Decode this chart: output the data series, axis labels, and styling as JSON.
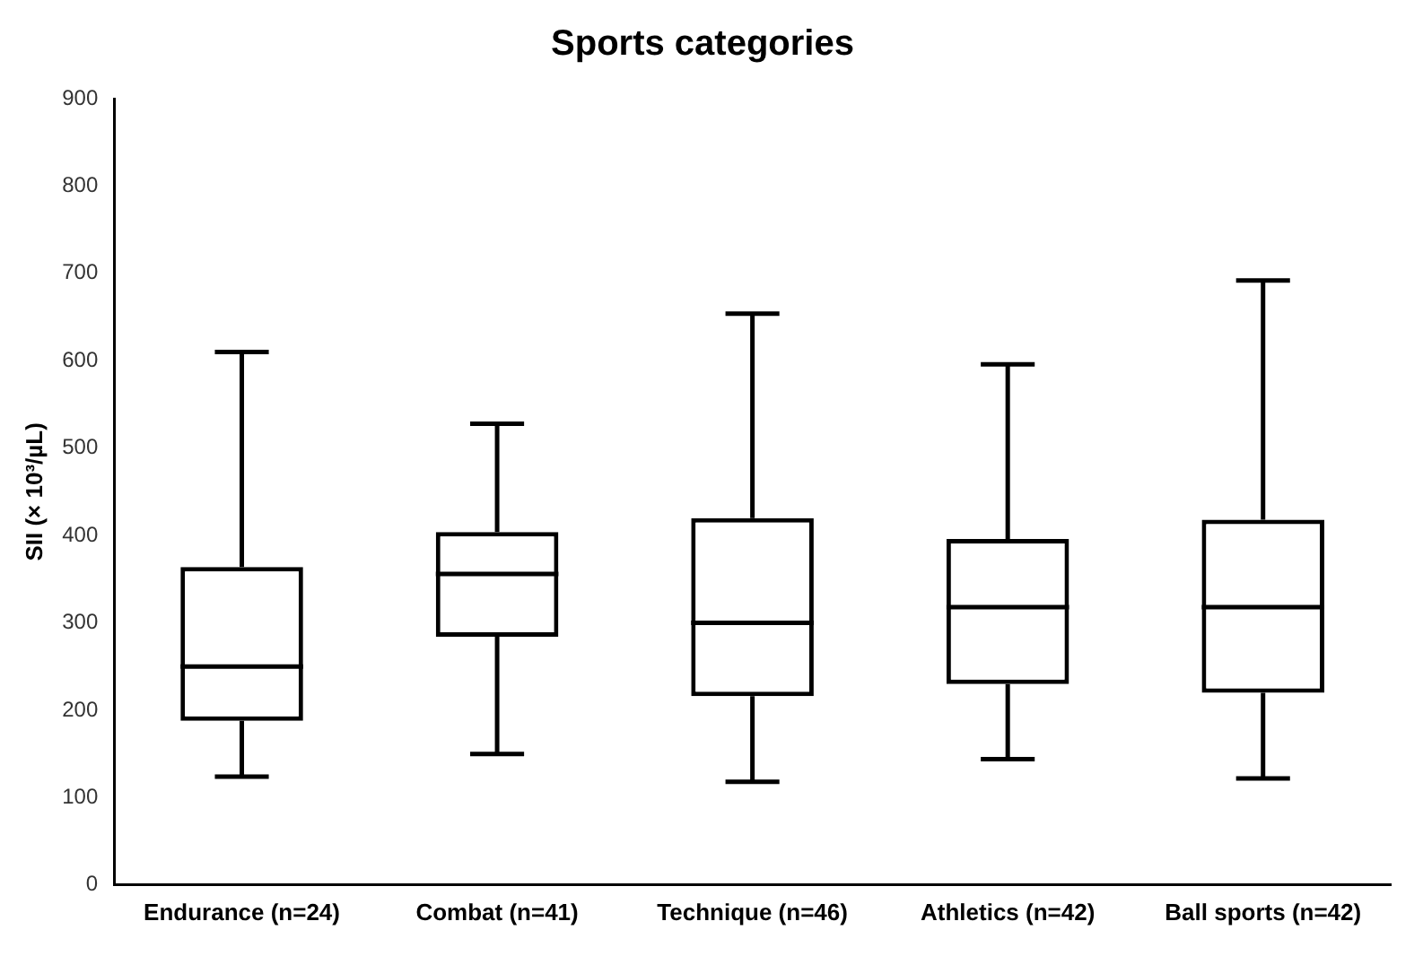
{
  "chart_data": {
    "type": "box",
    "title": "Sports categories",
    "ylabel": "SII (× 10³/µL)",
    "categories": [
      "Endurance (n=24)",
      "Combat (n=41)",
      "Technique (n=46)",
      "Athletics (n=42)",
      "Ball sports (n=42)"
    ],
    "boxes": [
      {
        "low": 124,
        "q1": 188,
        "median": 250,
        "q3": 364,
        "high": 610
      },
      {
        "low": 150,
        "q1": 284,
        "median": 356,
        "q3": 404,
        "high": 528
      },
      {
        "low": 118,
        "q1": 216,
        "median": 300,
        "q3": 420,
        "high": 654
      },
      {
        "low": 144,
        "q1": 230,
        "median": 318,
        "q3": 396,
        "high": 596
      },
      {
        "low": 122,
        "q1": 220,
        "median": 318,
        "q3": 418,
        "high": 692
      }
    ],
    "color": "#000000",
    "ylim": [
      0,
      900
    ],
    "yticks": [
      0,
      100,
      200,
      300,
      400,
      500,
      600,
      700,
      800,
      900
    ],
    "grid": false,
    "legend": false
  }
}
